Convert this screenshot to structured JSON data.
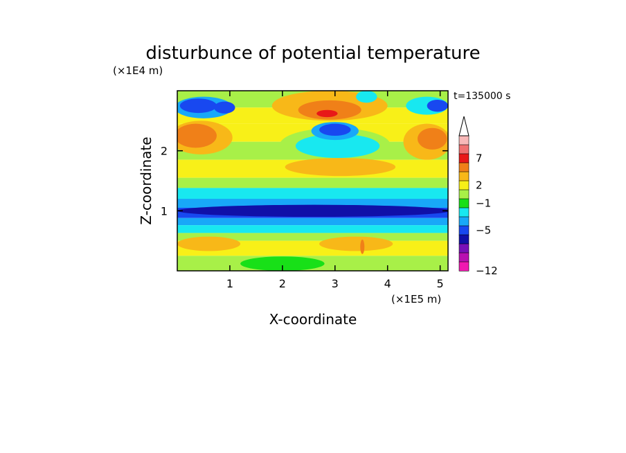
{
  "chart_data": {
    "type": "heatmap",
    "title": "disturbunce of potential temperature",
    "xlabel": "X-coordinate",
    "ylabel": "Z-coordinate",
    "x_unit": "(×1E5 m)",
    "y_unit": "(×1E4 m)",
    "time_label": "t=135000 s",
    "x_ticks": [
      "1",
      "2",
      "3",
      "4",
      "5"
    ],
    "y_ticks": [
      "1",
      "2"
    ],
    "xlim": [
      0,
      5.15
    ],
    "ylim": [
      0,
      3
    ],
    "colorbar": {
      "tick_labels": [
        "7",
        "2",
        "-1",
        "-5",
        "-12"
      ],
      "extend": "max",
      "colors": [
        "#f8b8b8",
        "#f07070",
        "#e81818",
        "#f08018",
        "#f8b818",
        "#f8f018",
        "#a8f048",
        "#18e018",
        "#18e8f0",
        "#18a8f8",
        "#1848f0",
        "#1010a8",
        "#7810b8",
        "#b810b0",
        "#f018b0"
      ]
    },
    "bands": [
      {
        "z": [
          2.72,
          3.0
        ],
        "color": "#a8f048"
      },
      {
        "z": [
          2.45,
          2.72
        ],
        "color": "#f8f018"
      },
      {
        "z": [
          2.15,
          2.45
        ],
        "color": "#f8f018"
      },
      {
        "z": [
          1.85,
          2.15
        ],
        "color": "#a8f048"
      },
      {
        "z": [
          1.55,
          1.85
        ],
        "color": "#f8f018"
      },
      {
        "z": [
          1.38,
          1.55
        ],
        "color": "#a8f048"
      },
      {
        "z": [
          1.2,
          1.38
        ],
        "color": "#18e8f0"
      },
      {
        "z": [
          1.05,
          1.2
        ],
        "color": "#18a8f8"
      },
      {
        "z": [
          0.88,
          1.05
        ],
        "color": "#1848f0"
      },
      {
        "z": [
          0.76,
          0.88
        ],
        "color": "#18a8f8"
      },
      {
        "z": [
          0.63,
          0.76
        ],
        "color": "#18e8f0"
      },
      {
        "z": [
          0.5,
          0.63
        ],
        "color": "#a8f048"
      },
      {
        "z": [
          0.25,
          0.5
        ],
        "color": "#f8f018"
      },
      {
        "z": [
          0.0,
          0.25
        ],
        "color": "#a8f048"
      }
    ],
    "blobs": [
      {
        "x": 0.5,
        "z": 2.72,
        "rx": 0.55,
        "rz": 0.18,
        "color": "#18a8f8"
      },
      {
        "x": 0.4,
        "z": 2.75,
        "rx": 0.35,
        "rz": 0.12,
        "color": "#1848f0"
      },
      {
        "x": 0.9,
        "z": 2.72,
        "rx": 0.2,
        "rz": 0.1,
        "color": "#1848f0"
      },
      {
        "x": 0.45,
        "z": 2.22,
        "rx": 0.6,
        "rz": 0.28,
        "color": "#f8b818"
      },
      {
        "x": 0.35,
        "z": 2.25,
        "rx": 0.4,
        "rz": 0.2,
        "color": "#f08018"
      },
      {
        "x": 2.9,
        "z": 2.75,
        "rx": 1.1,
        "rz": 0.25,
        "color": "#f8b818"
      },
      {
        "x": 2.9,
        "z": 2.68,
        "rx": 0.6,
        "rz": 0.16,
        "color": "#f08018"
      },
      {
        "x": 2.85,
        "z": 2.62,
        "rx": 0.2,
        "rz": 0.06,
        "color": "#e81818"
      },
      {
        "x": 3.0,
        "z": 2.1,
        "rx": 1.05,
        "rz": 0.28,
        "color": "#a8f048"
      },
      {
        "x": 3.05,
        "z": 2.08,
        "rx": 0.8,
        "rz": 0.2,
        "color": "#18e8f0"
      },
      {
        "x": 3.0,
        "z": 2.33,
        "rx": 0.45,
        "rz": 0.15,
        "color": "#18a8f8"
      },
      {
        "x": 3.0,
        "z": 2.35,
        "rx": 0.3,
        "rz": 0.1,
        "color": "#1848f0"
      },
      {
        "x": 3.1,
        "z": 1.73,
        "rx": 1.05,
        "rz": 0.15,
        "color": "#f8b818"
      },
      {
        "x": 4.75,
        "z": 2.15,
        "rx": 0.45,
        "rz": 0.3,
        "color": "#f8b818"
      },
      {
        "x": 4.85,
        "z": 2.2,
        "rx": 0.28,
        "rz": 0.18,
        "color": "#f08018"
      },
      {
        "x": 4.75,
        "z": 2.75,
        "rx": 0.4,
        "rz": 0.15,
        "color": "#18e8f0"
      },
      {
        "x": 4.95,
        "z": 2.75,
        "rx": 0.2,
        "rz": 0.1,
        "color": "#1848f0"
      },
      {
        "x": 3.6,
        "z": 2.9,
        "rx": 0.2,
        "rz": 0.1,
        "color": "#18e8f0"
      },
      {
        "x": 2.6,
        "z": 1.0,
        "rx": 2.6,
        "rz": 0.1,
        "color": "#1010a8"
      },
      {
        "x": 0.6,
        "z": 0.45,
        "rx": 0.6,
        "rz": 0.12,
        "color": "#f8b818"
      },
      {
        "x": 3.4,
        "z": 0.45,
        "rx": 0.7,
        "rz": 0.12,
        "color": "#f8b818"
      },
      {
        "x": 2.0,
        "z": 0.12,
        "rx": 0.8,
        "rz": 0.12,
        "color": "#18e018"
      },
      {
        "x": 3.52,
        "z": 0.4,
        "rx": 0.04,
        "rz": 0.12,
        "color": "#f08018"
      }
    ]
  }
}
